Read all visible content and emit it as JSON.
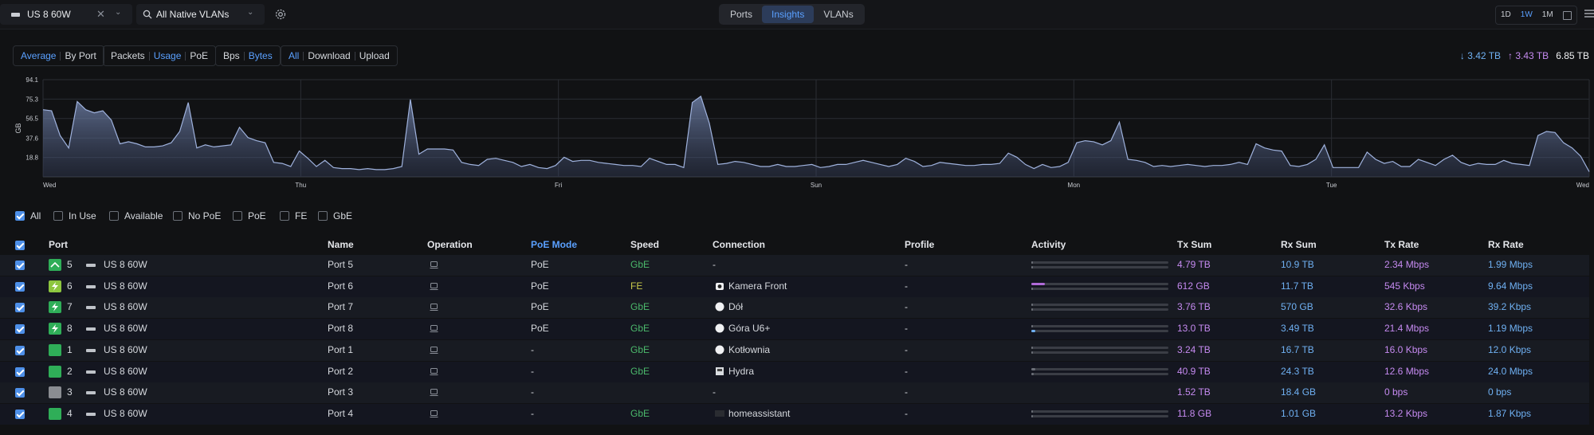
{
  "topbar": {
    "device": "US 8 60W",
    "vlan": "All Native VLANs",
    "tabs": [
      {
        "label": "Ports",
        "active": false
      },
      {
        "label": "Insights",
        "active": true
      },
      {
        "label": "VLANs",
        "active": false
      }
    ],
    "ranges": [
      {
        "label": "1D",
        "active": false
      },
      {
        "label": "1W",
        "active": true
      },
      {
        "label": "1M",
        "active": false
      }
    ]
  },
  "filters": {
    "view": [
      "Average",
      "By Port"
    ],
    "metric": [
      "Packets",
      "Usage",
      "PoE"
    ],
    "unit": [
      "Bps",
      "Bytes"
    ],
    "direction": [
      "All",
      "Download",
      "Upload"
    ]
  },
  "totals": {
    "down": "3.42 TB",
    "up": "3.43 TB",
    "total": "6.85 TB"
  },
  "chart_data": {
    "type": "area",
    "ylabel": "GB",
    "yticks": [
      18.8,
      37.6,
      56.5,
      75.3,
      94.1
    ],
    "ylim": [
      0,
      94.1
    ],
    "xticks": [
      "Wed",
      "Thu",
      "Fri",
      "Sun",
      "Mon",
      "Tue",
      "Wed"
    ],
    "grid": true,
    "values": [
      65,
      64,
      40,
      28,
      73,
      65,
      62,
      64,
      55,
      32,
      34,
      32,
      29,
      29,
      30,
      33,
      44,
      72,
      28,
      31,
      29,
      30,
      31,
      48,
      38,
      35,
      33,
      14,
      13,
      10,
      25,
      18,
      10,
      16,
      9,
      8,
      8,
      7,
      8,
      7,
      7,
      8,
      10,
      75,
      22,
      27,
      27,
      27,
      26,
      14,
      12,
      11,
      17,
      18,
      16,
      14,
      10,
      12,
      9,
      8,
      11,
      19,
      15,
      16,
      16,
      14,
      13,
      12,
      11,
      11,
      10,
      18,
      15,
      12,
      12,
      9,
      72,
      78,
      52,
      12,
      13,
      15,
      14,
      12,
      10,
      10,
      12,
      10,
      10,
      11,
      12,
      9,
      10,
      12,
      12,
      14,
      16,
      14,
      12,
      10,
      12,
      18,
      15,
      10,
      11,
      14,
      13,
      12,
      11,
      11,
      12,
      12,
      13,
      23,
      19,
      12,
      8,
      12,
      9,
      10,
      14,
      33,
      35,
      34,
      31,
      35,
      53,
      17,
      16,
      14,
      10,
      11,
      10,
      11,
      12,
      11,
      10,
      11,
      11,
      12,
      14,
      12,
      32,
      28,
      26,
      25,
      11,
      10,
      12,
      17,
      31,
      9,
      9,
      9,
      9,
      24,
      17,
      13,
      15,
      10,
      10,
      17,
      14,
      11,
      17,
      21,
      14,
      11,
      13,
      12,
      12,
      16,
      13,
      12,
      11,
      40,
      44,
      43,
      33,
      28,
      20,
      5
    ]
  },
  "checkfilters": [
    {
      "label": "All",
      "checked": true
    },
    {
      "label": "In Use",
      "checked": false
    },
    {
      "label": "Available",
      "checked": false
    },
    {
      "label": "No PoE",
      "checked": false
    },
    {
      "label": "PoE",
      "checked": false
    },
    {
      "label": "FE",
      "checked": false
    },
    {
      "label": "GbE",
      "checked": false
    }
  ],
  "columns": {
    "port": "Port",
    "name": "Name",
    "operation": "Operation",
    "poe": "PoE Mode",
    "speed": "Speed",
    "connection": "Connection",
    "profile": "Profile",
    "activity": "Activity",
    "txsum": "Tx Sum",
    "rxsum": "Rx Sum",
    "txrate": "Tx Rate",
    "rxrate": "Rx Rate"
  },
  "rows": [
    {
      "port": "5",
      "icon": "uplink",
      "color": "green",
      "device": "US 8 60W",
      "name": "Port 5",
      "poe": "PoE",
      "speed": "GbE",
      "conn_icon": "",
      "connection": "-",
      "profile": "-",
      "tx_act": 0.0,
      "rx_act": 0.0,
      "txsum": "4.79 TB",
      "rxsum": "10.9 TB",
      "txrate": "2.34 Mbps",
      "rxrate": "1.99 Mbps"
    },
    {
      "port": "6",
      "icon": "poe",
      "color": "lime",
      "device": "US 8 60W",
      "name": "Port 6",
      "poe": "PoE",
      "speed": "FE",
      "conn_icon": "camera",
      "connection": "Kamera Front",
      "profile": "-",
      "tx_act": 0.1,
      "rx_act": 0.01,
      "txsum": "612 GB",
      "rxsum": "11.7 TB",
      "txrate": "545 Kbps",
      "rxrate": "9.64 Mbps"
    },
    {
      "port": "7",
      "icon": "poe",
      "color": "green",
      "device": "US 8 60W",
      "name": "Port 7",
      "poe": "PoE",
      "speed": "GbE",
      "conn_icon": "ap",
      "connection": "Dół",
      "profile": "-",
      "tx_act": 0.01,
      "rx_act": 0.01,
      "txsum": "3.76 TB",
      "rxsum": "570 GB",
      "txrate": "32.6 Kbps",
      "rxrate": "39.2 Kbps"
    },
    {
      "port": "8",
      "icon": "poe",
      "color": "green",
      "device": "US 8 60W",
      "name": "Port 8",
      "poe": "PoE",
      "speed": "GbE",
      "conn_icon": "ap",
      "connection": "Góra U6+",
      "profile": "-",
      "tx_act": 0.01,
      "rx_act": 0.03,
      "txsum": "13.0 TB",
      "rxsum": "3.49 TB",
      "txrate": "21.4 Mbps",
      "rxrate": "1.19 Mbps"
    },
    {
      "port": "1",
      "icon": "none",
      "color": "green",
      "device": "US 8 60W",
      "name": "Port 1",
      "poe": "-",
      "speed": "GbE",
      "conn_icon": "ap",
      "connection": "Kotłownia",
      "profile": "-",
      "tx_act": 0.01,
      "rx_act": 0.01,
      "txsum": "3.24 TB",
      "rxsum": "16.7 TB",
      "txrate": "16.0 Kbps",
      "rxrate": "12.0 Kbps"
    },
    {
      "port": "2",
      "icon": "none",
      "color": "green",
      "device": "US 8 60W",
      "name": "Port 2",
      "poe": "-",
      "speed": "GbE",
      "conn_icon": "server",
      "connection": "Hydra",
      "profile": "-",
      "tx_act": 0.03,
      "rx_act": 0.02,
      "txsum": "40.9 TB",
      "rxsum": "24.3 TB",
      "txrate": "12.6 Mbps",
      "rxrate": "24.0 Mbps"
    },
    {
      "port": "3",
      "icon": "none",
      "color": "grey",
      "device": "US 8 60W",
      "name": "Port 3",
      "poe": "-",
      "speed": "",
      "conn_icon": "",
      "connection": "-",
      "profile": "-",
      "tx_act": -1,
      "rx_act": -1,
      "txsum": "1.52 TB",
      "rxsum": "18.4 GB",
      "txrate": "0 bps",
      "rxrate": "0 bps"
    },
    {
      "port": "4",
      "icon": "none",
      "color": "green",
      "device": "US 8 60W",
      "name": "Port 4",
      "poe": "-",
      "speed": "GbE",
      "conn_icon": "host",
      "connection": "homeassistant",
      "profile": "-",
      "tx_act": 0.01,
      "rx_act": 0.01,
      "txsum": "11.8 GB",
      "rxsum": "1.01 GB",
      "txrate": "13.2 Kbps",
      "rxrate": "1.87 Kbps"
    }
  ]
}
